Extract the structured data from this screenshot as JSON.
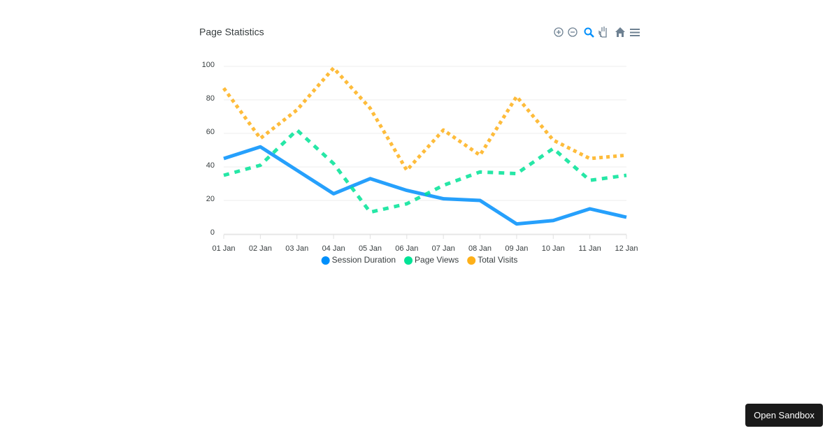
{
  "chart_data": {
    "type": "line",
    "title": "Page Statistics",
    "categories": [
      "01 Jan",
      "02 Jan",
      "03 Jan",
      "04 Jan",
      "05 Jan",
      "06 Jan",
      "07 Jan",
      "08 Jan",
      "09 Jan",
      "10 Jan",
      "11 Jan",
      "12 Jan"
    ],
    "series": [
      {
        "name": "Session Duration",
        "color": "#008FFB",
        "dash": 0,
        "values": [
          45,
          52,
          38,
          24,
          33,
          26,
          21,
          20,
          6,
          8,
          15,
          10
        ]
      },
      {
        "name": "Page Views",
        "color": "#00E396",
        "dash": 8,
        "values": [
          35,
          41,
          62,
          42,
          13,
          18,
          29,
          37,
          36,
          51,
          32,
          35
        ]
      },
      {
        "name": "Total Visits",
        "color": "#FEB019",
        "dash": 5,
        "values": [
          87,
          57,
          74,
          99,
          75,
          38,
          62,
          47,
          82,
          56,
          45,
          47
        ]
      }
    ],
    "ylim": [
      0,
      100
    ],
    "yticks": [
      0,
      20,
      40,
      60,
      80,
      100
    ],
    "grid": true,
    "legend": "bottom"
  },
  "ui": {
    "button": "Open Sandbox"
  }
}
